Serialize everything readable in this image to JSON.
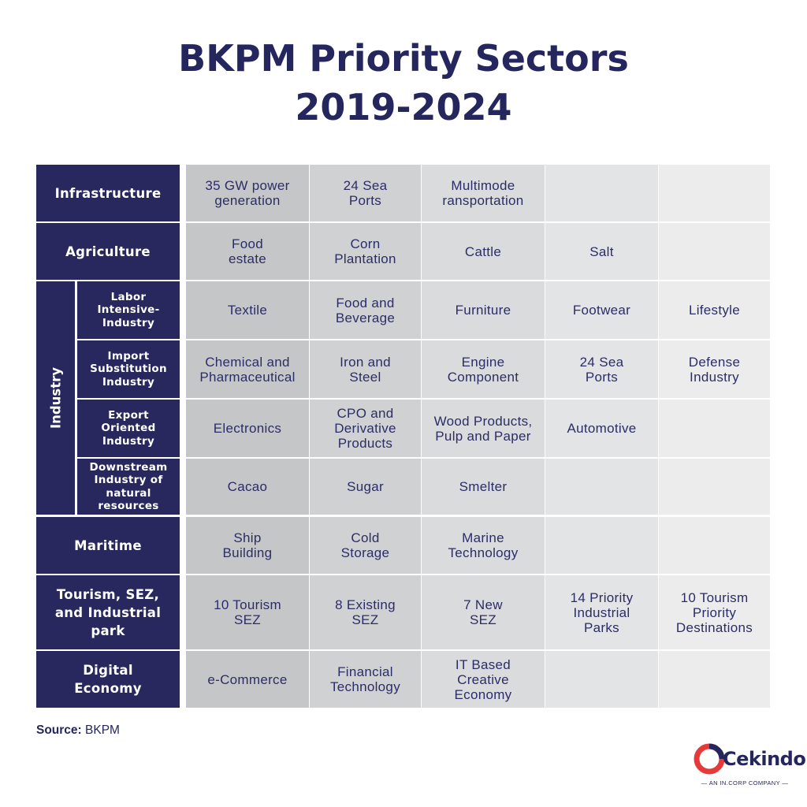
{
  "title": {
    "line1": "BKPM Priority Sectors",
    "line2": "2019-2024"
  },
  "table": {
    "infrastructure": {
      "label": "Infrastructure",
      "cells": [
        "35 GW power\ngeneration",
        "24 Sea\nPorts",
        "Multimode\nransportation",
        "",
        ""
      ]
    },
    "agriculture": {
      "label": "Agriculture",
      "cells": [
        "Food\nestate",
        "Corn\nPlantation",
        "Cattle",
        "Salt",
        ""
      ]
    },
    "industry": {
      "label": "Industry",
      "sub": [
        {
          "label": "Labor\nIntensive-\nIndustry",
          "cells": [
            "Textile",
            "Food and\nBeverage",
            "Furniture",
            "Footwear",
            "Lifestyle"
          ]
        },
        {
          "label": "Import\nSubstitution\nIndustry",
          "cells": [
            "Chemical and\nPharmaceutical",
            "Iron and\nSteel",
            "Engine\nComponent",
            "24 Sea\nPorts",
            "Defense\nIndustry"
          ]
        },
        {
          "label": "Export\nOriented\nIndustry",
          "cells": [
            "Electronics",
            "CPO and\nDerivative\nProducts",
            "Wood Products,\nPulp and Paper",
            "Automotive",
            ""
          ]
        },
        {
          "label": "Downstream\nIndustry of\nnatural\nresources",
          "cells": [
            "Cacao",
            "Sugar",
            "Smelter",
            "",
            ""
          ]
        }
      ]
    },
    "maritime": {
      "label": "Maritime",
      "cells": [
        "Ship\nBuilding",
        "Cold\nStorage",
        "Marine\nTechnology",
        "",
        ""
      ]
    },
    "tourism": {
      "label": "Tourism, SEZ,\nand Industrial\npark",
      "cells": [
        "10 Tourism\nSEZ",
        "8 Existing\nSEZ",
        "7 New\nSEZ",
        "14 Priority\nIndustrial\nParks",
        "10 Tourism\nPriority\nDestinations"
      ]
    },
    "digital": {
      "label": "Digital\nEconomy",
      "cells": [
        "e-Commerce",
        "Financial\nTechnology",
        "IT Based\nCreative\nEconomy",
        "",
        ""
      ]
    }
  },
  "source": {
    "label": "Source:",
    "value": "BKPM"
  },
  "logo": {
    "name": "Cekindo",
    "tagline": "— AN IN.CORP COMPANY —",
    "icon": "cekindo-logo-icon"
  },
  "colors": {
    "header": "#28285e",
    "title": "#25265e",
    "col1": "#c5c6c8",
    "col2": "#d0d1d3",
    "col3": "#dadbdd",
    "col4": "#e3e4e6",
    "col5": "#ececed",
    "accent": "#e63a3a"
  }
}
